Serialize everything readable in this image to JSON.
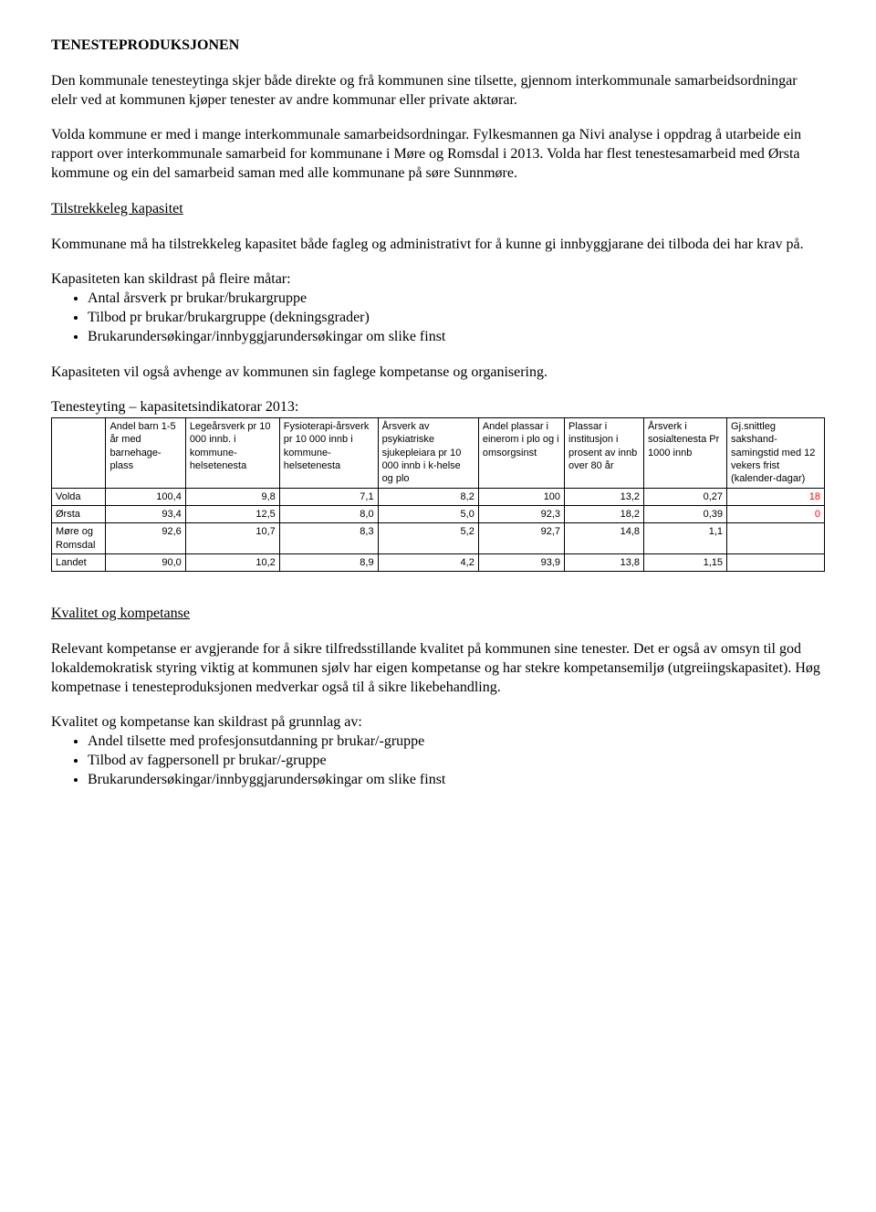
{
  "title": "TENESTEPRODUKSJONEN",
  "para1": "Den kommunale tenesteytinga skjer både direkte og frå kommunen sine tilsette, gjennom interkommunale samarbeidsordningar elelr ved at kommunen kjøper tenester av andre kommunar eller private aktørar.",
  "para2": "Volda kommune er med i mange interkommunale samarbeidsordningar. Fylkesmannen ga Nivi analyse i oppdrag å utarbeide ein rapport over interkommunale samarbeid for kommunane i Møre og Romsdal i 2013. Volda har flest tenestesamarbeid med Ørsta kommune og ein del samarbeid saman med alle kommunane på søre Sunnmøre.",
  "heading_capacity": "Tilstrekkeleg kapasitet",
  "para3": "Kommunane må ha tilstrekkeleg kapasitet både fagleg og administrativt for å kunne gi innbyggjarane dei tilboda dei har krav på.",
  "para4_intro": "Kapasiteten kan skildrast på fleire måtar:",
  "bullets1": [
    "Antal årsverk pr brukar/brukargruppe",
    "Tilbod pr brukar/brukargruppe (dekningsgrader)",
    "Brukarundersøkingar/innbyggjarundersøkingar om slike finst"
  ],
  "para5": "Kapasiteten vil også avhenge av kommunen sin faglege kompetanse og organisering.",
  "table_title": "Tenesteyting – kapasitetsindikatorar 2013:",
  "table": {
    "columns": [
      "",
      "Andel barn 1-5 år med barnehage-plass",
      "Legeårsverk pr 10 000 innb. i kommune-helsetenesta",
      "Fysioterapi-årsverk pr 10 000 innb i kommune-helsetenesta",
      "Årsverk av psykiatriske sjukepleiara pr 10 000 innb i k-helse og plo",
      "Andel plassar i einerom i plo og i omsorgsinst",
      "Plassar i institusjon i prosent av innb over 80 år",
      "Årsverk i sosialtenesta Pr 1000 innb",
      "Gj.snittleg sakshand-samingstid med 12 vekers frist (kalender-dagar)"
    ],
    "rows": [
      {
        "label": "Volda",
        "cells": [
          "100,4",
          "9,8",
          "7,1",
          "8,2",
          "100",
          "13,2",
          "0,27",
          "18"
        ],
        "last_red": true
      },
      {
        "label": "Ørsta",
        "cells": [
          "93,4",
          "12,5",
          "8,0",
          "5,0",
          "92,3",
          "18,2",
          "0,39",
          "0"
        ],
        "last_red": true
      },
      {
        "label": "Møre og Romsdal",
        "cells": [
          "92,6",
          "10,7",
          "8,3",
          "5,2",
          "92,7",
          "14,8",
          "1,1",
          ""
        ],
        "last_red": false
      },
      {
        "label": "Landet",
        "cells": [
          "90,0",
          "10,2",
          "8,9",
          "4,2",
          "93,9",
          "13,8",
          "1,15",
          ""
        ],
        "last_red": false
      }
    ]
  },
  "heading_quality": "Kvalitet og kompetanse",
  "para6": "Relevant kompetanse er avgjerande for å sikre tilfredsstillande kvalitet på kommunen sine tenester. Det er også av omsyn til god lokaldemokratisk styring viktig at kommunen sjølv har eigen kompetanse og har stekre kompetansemiljø (utgreiingskapasitet). Høg kompetnase i tenesteproduksjonen medverkar også til å sikre likebehandling.",
  "para7_intro": "Kvalitet og kompetanse kan skildrast på grunnlag av:",
  "bullets2": [
    "Andel tilsette med profesjonsutdanning pr brukar/-gruppe",
    "Tilbod av fagpersonell pr brukar/-gruppe",
    "Brukarundersøkingar/innbyggjarundersøkingar om slike finst"
  ]
}
